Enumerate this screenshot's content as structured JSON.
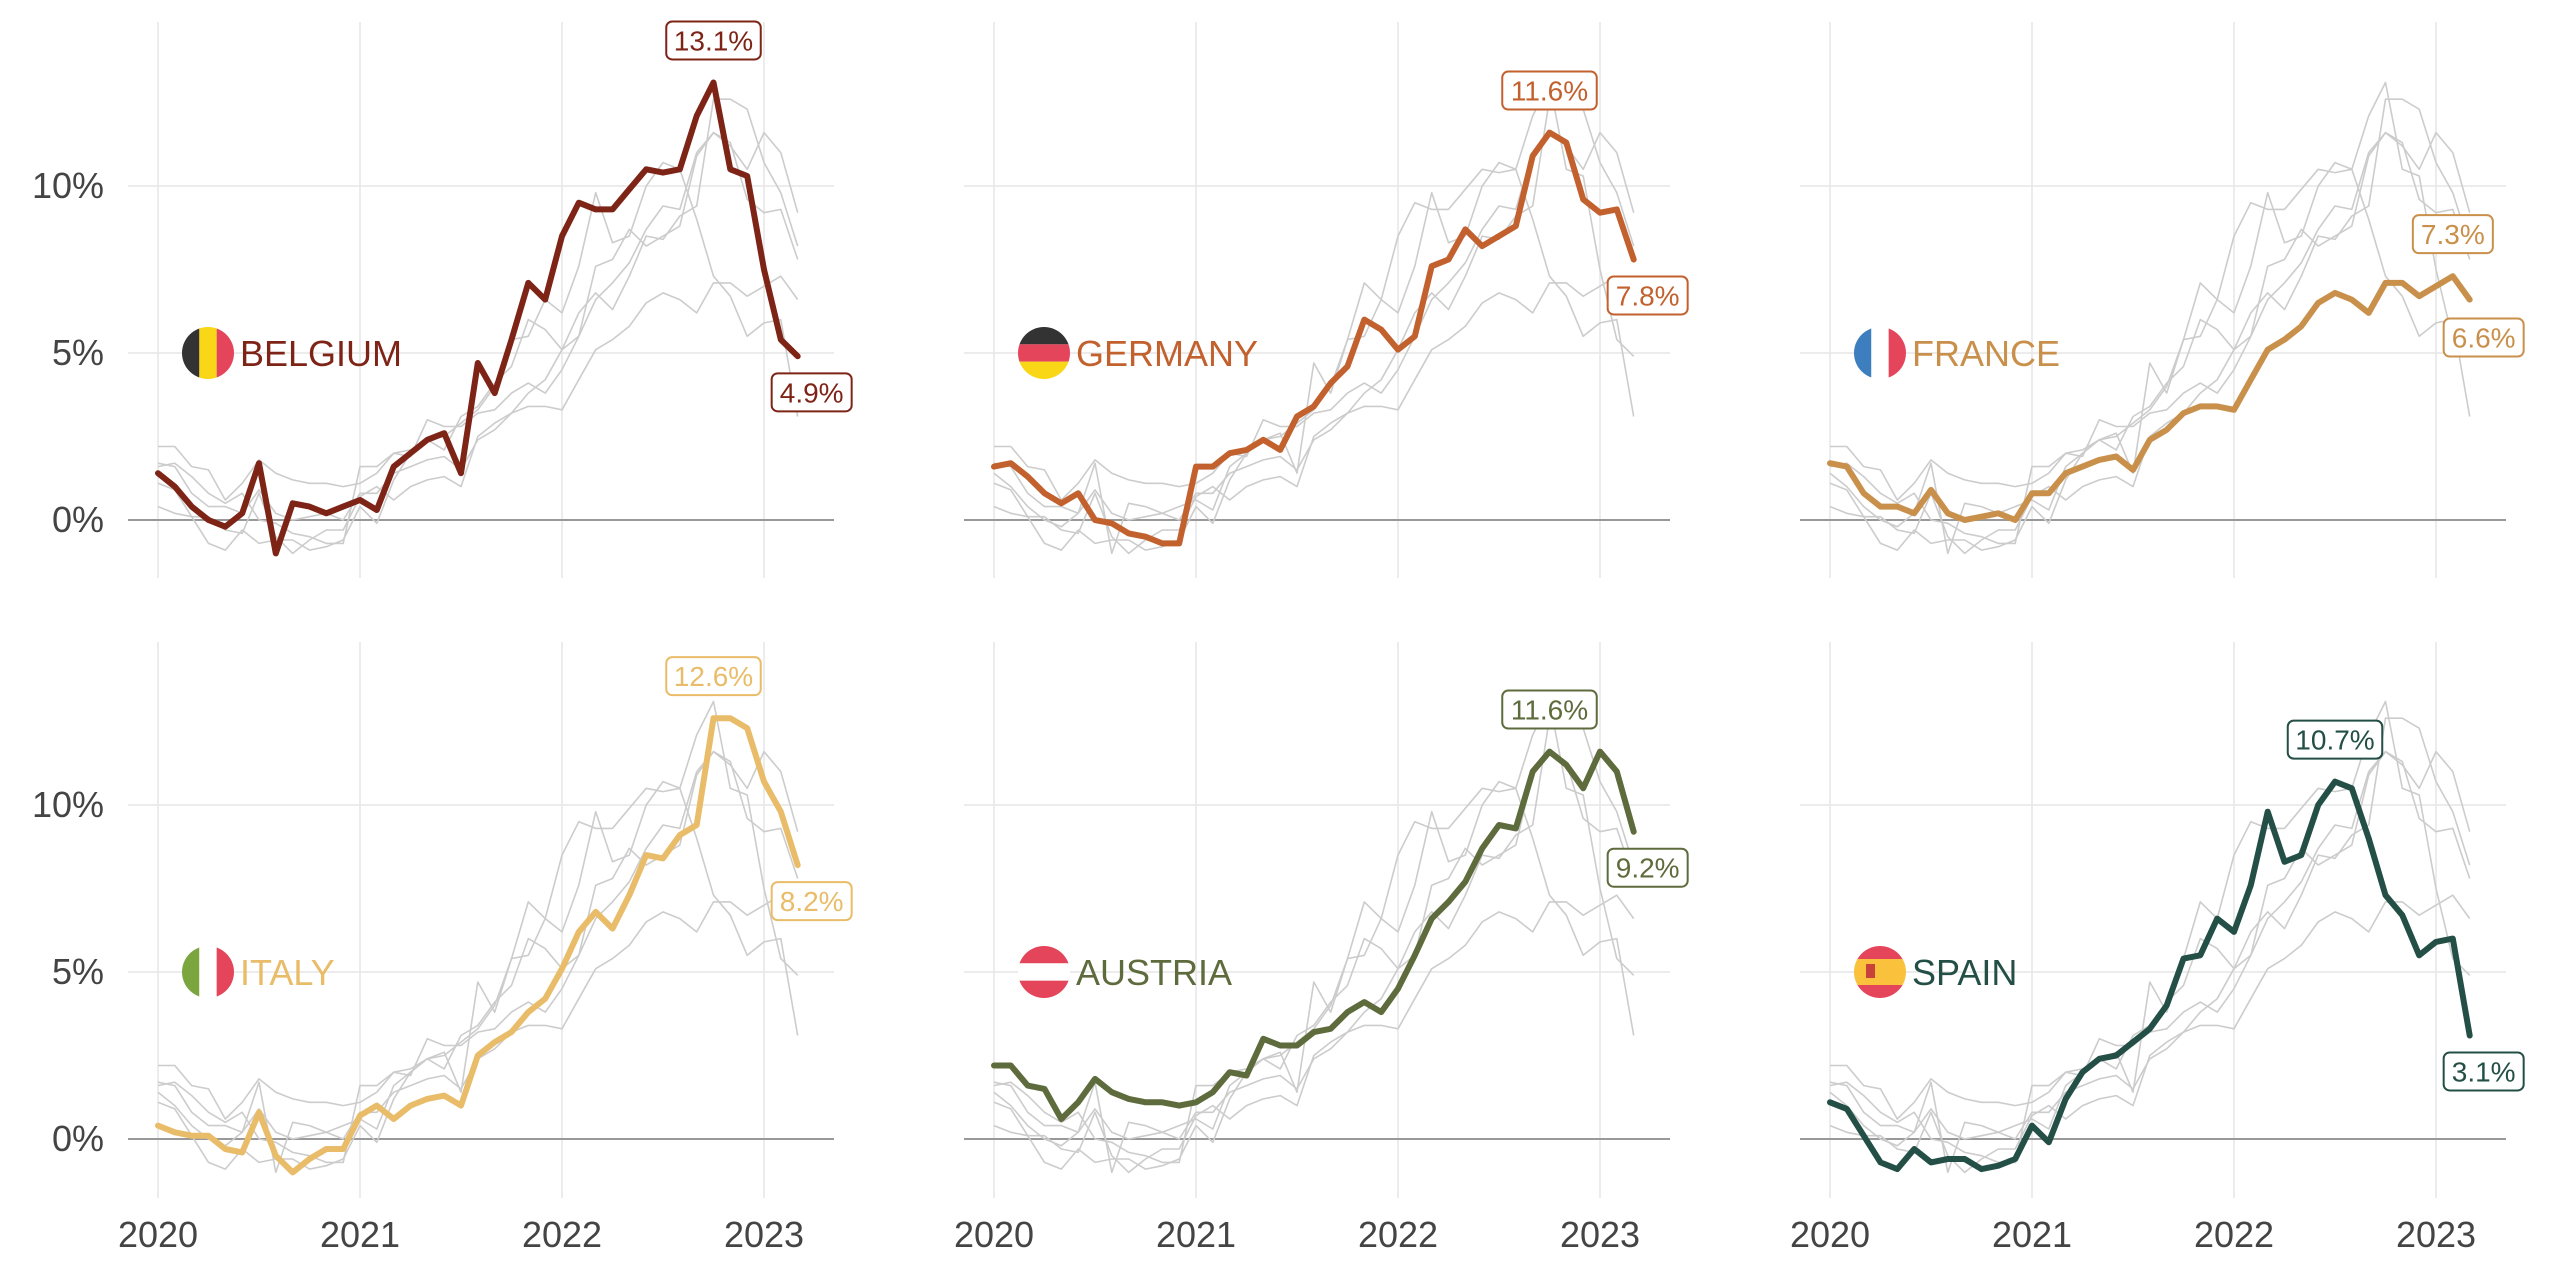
{
  "chart_data": {
    "type": "line",
    "layout": "small-multiples-2x3",
    "x_ticks": [
      "2020",
      "2021",
      "2022",
      "2023"
    ],
    "y_ticks": [
      {
        "v": 0,
        "label": "0%"
      },
      {
        "v": 5,
        "label": "5%"
      },
      {
        "v": 10,
        "label": "10%"
      }
    ],
    "xlim": [
      2020,
      2023.5
    ],
    "ylim": [
      -2,
      15
    ],
    "grid": true,
    "countries": [
      {
        "name": "BELGIUM",
        "flag": "belgium-flag-icon",
        "color": "#7E2417",
        "peak_label": "13.1%",
        "last_label": "4.9%",
        "values": [
          1.4,
          1.0,
          0.4,
          0.0,
          -0.2,
          0.2,
          1.7,
          -1.0,
          0.5,
          0.4,
          0.2,
          0.4,
          0.6,
          0.3,
          1.6,
          2.0,
          2.4,
          2.6,
          1.4,
          4.7,
          3.8,
          5.4,
          7.1,
          6.6,
          8.5,
          9.5,
          9.3,
          9.3,
          9.9,
          10.5,
          10.4,
          10.5,
          12.1,
          13.1,
          10.5,
          10.3,
          7.5,
          5.4,
          4.9
        ]
      },
      {
        "name": "GERMANY",
        "flag": "germany-flag-icon",
        "color": "#C2612E",
        "peak_label": "11.6%",
        "last_label": "7.8%",
        "values": [
          1.6,
          1.7,
          1.3,
          0.8,
          0.5,
          0.8,
          0.0,
          -0.1,
          -0.4,
          -0.5,
          -0.7,
          -0.7,
          1.6,
          1.6,
          2.0,
          2.1,
          2.4,
          2.1,
          3.1,
          3.4,
          4.1,
          4.6,
          6.0,
          5.7,
          5.1,
          5.5,
          7.6,
          7.8,
          8.7,
          8.2,
          8.5,
          8.8,
          10.9,
          11.6,
          11.3,
          9.6,
          9.2,
          9.3,
          7.8
        ]
      },
      {
        "name": "FRANCE",
        "flag": "france-flag-icon",
        "color": "#C9904B",
        "peak_label": "7.3%",
        "last_label": "6.6%",
        "values": [
          1.7,
          1.6,
          0.8,
          0.4,
          0.4,
          0.2,
          0.9,
          0.2,
          0.0,
          0.1,
          0.2,
          0.0,
          0.8,
          0.8,
          1.4,
          1.6,
          1.8,
          1.9,
          1.5,
          2.4,
          2.7,
          3.2,
          3.4,
          3.4,
          3.3,
          4.2,
          5.1,
          5.4,
          5.8,
          6.5,
          6.8,
          6.6,
          6.2,
          7.1,
          7.1,
          6.7,
          7.0,
          7.3,
          6.6
        ]
      },
      {
        "name": "ITALY",
        "flag": "italy-flag-icon",
        "color": "#E9BC69",
        "peak_label": "12.6%",
        "last_label": "8.2%",
        "values": [
          0.4,
          0.2,
          0.1,
          0.1,
          -0.3,
          -0.4,
          0.8,
          -0.5,
          -1.0,
          -0.6,
          -0.3,
          -0.3,
          0.7,
          1.0,
          0.6,
          1.0,
          1.2,
          1.3,
          1.0,
          2.5,
          2.9,
          3.2,
          3.8,
          4.2,
          5.1,
          6.2,
          6.8,
          6.3,
          7.3,
          8.5,
          8.4,
          9.1,
          9.4,
          12.6,
          12.6,
          12.3,
          10.7,
          9.8,
          8.2
        ]
      },
      {
        "name": "AUSTRIA",
        "flag": "austria-flag-icon",
        "color": "#5E6B3C",
        "peak_label": "11.6%",
        "last_label": "9.2%",
        "values": [
          2.2,
          2.2,
          1.6,
          1.5,
          0.6,
          1.1,
          1.8,
          1.4,
          1.2,
          1.1,
          1.1,
          1.0,
          1.1,
          1.4,
          2.0,
          1.9,
          3.0,
          2.8,
          2.8,
          3.2,
          3.3,
          3.8,
          4.1,
          3.8,
          4.5,
          5.5,
          6.6,
          7.1,
          7.7,
          8.7,
          9.4,
          9.3,
          11.0,
          11.6,
          11.2,
          10.5,
          11.6,
          11.0,
          9.2
        ]
      },
      {
        "name": "SPAIN",
        "flag": "spain-flag-icon",
        "color": "#234F46",
        "peak_label": "10.7%",
        "last_label": "3.1%",
        "values": [
          1.1,
          0.9,
          0.1,
          -0.7,
          -0.9,
          -0.3,
          -0.7,
          -0.6,
          -0.6,
          -0.9,
          -0.8,
          -0.6,
          0.4,
          -0.1,
          1.2,
          2.0,
          2.4,
          2.5,
          2.9,
          3.3,
          4.0,
          5.4,
          5.5,
          6.6,
          6.2,
          7.6,
          9.8,
          8.3,
          8.5,
          10.0,
          10.7,
          10.5,
          9.0,
          7.3,
          6.7,
          5.5,
          5.9,
          6.0,
          3.1
        ]
      }
    ]
  }
}
